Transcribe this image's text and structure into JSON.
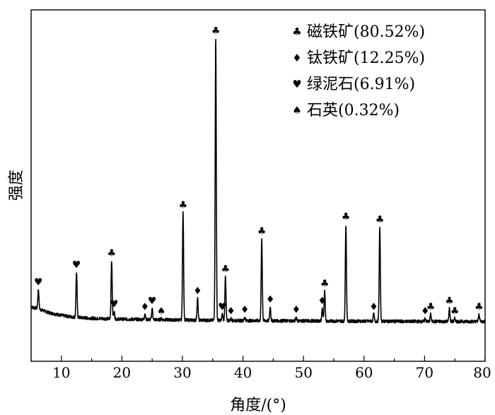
{
  "chart_data": {
    "type": "line",
    "title": "",
    "xlabel": "角度/(°)",
    "ylabel": "强度",
    "xlim": [
      5,
      80
    ],
    "ylim": [
      0,
      100
    ],
    "xticks": [
      10,
      20,
      30,
      40,
      50,
      60,
      70,
      80
    ],
    "grid": false,
    "legend_position": "top-right",
    "legend": [
      {
        "symbol": "♣",
        "label": "磁铁矿(80.52%)"
      },
      {
        "symbol": "♦",
        "label": "钛铁矿(12.25%)"
      },
      {
        "symbol": "♥",
        "label": "绿泥石(6.91%)"
      },
      {
        "symbol": "♠",
        "label": "石英(0.32%)"
      }
    ],
    "baseline": [
      [
        5,
        7.5
      ],
      [
        6,
        7.0
      ],
      [
        8,
        5.5
      ],
      [
        10,
        4.6
      ],
      [
        12,
        4.0
      ],
      [
        15,
        3.6
      ],
      [
        20,
        3.3
      ],
      [
        30,
        3.0
      ],
      [
        40,
        2.8
      ],
      [
        50,
        2.7
      ],
      [
        60,
        2.6
      ],
      [
        70,
        2.5
      ],
      [
        80,
        2.5
      ]
    ],
    "peaks": [
      {
        "x": 6.2,
        "y": 13.5,
        "phase": "♥"
      },
      {
        "x": 12.5,
        "y": 19.5,
        "phase": "♥"
      },
      {
        "x": 18.3,
        "y": 23.5,
        "phase": "♣"
      },
      {
        "x": 18.7,
        "y": 6.0,
        "phase": "♥"
      },
      {
        "x": 23.8,
        "y": 5.0,
        "phase": "♦"
      },
      {
        "x": 25.0,
        "y": 7.0,
        "phase": "♥"
      },
      {
        "x": 26.5,
        "y": 3.5,
        "phase": "♠"
      },
      {
        "x": 30.1,
        "y": 40.0,
        "phase": "♣"
      },
      {
        "x": 32.5,
        "y": 10.5,
        "phase": "♦"
      },
      {
        "x": 35.5,
        "y": 100.0,
        "phase": "♣"
      },
      {
        "x": 36.6,
        "y": 5.0,
        "phase": "♥"
      },
      {
        "x": 37.1,
        "y": 18.0,
        "phase": "♣"
      },
      {
        "x": 38.0,
        "y": 3.5,
        "phase": "♦"
      },
      {
        "x": 40.3,
        "y": 4.0,
        "phase": "♦"
      },
      {
        "x": 43.1,
        "y": 31.0,
        "phase": "♣"
      },
      {
        "x": 44.5,
        "y": 7.5,
        "phase": "♦"
      },
      {
        "x": 48.8,
        "y": 4.0,
        "phase": "♦"
      },
      {
        "x": 53.1,
        "y": 7.0,
        "phase": "♦"
      },
      {
        "x": 53.5,
        "y": 13.0,
        "phase": "♣"
      },
      {
        "x": 57.0,
        "y": 36.0,
        "phase": "♣"
      },
      {
        "x": 61.6,
        "y": 5.0,
        "phase": "♦"
      },
      {
        "x": 62.6,
        "y": 35.0,
        "phase": "♣"
      },
      {
        "x": 70.1,
        "y": 3.5,
        "phase": "♦"
      },
      {
        "x": 71.0,
        "y": 5.0,
        "phase": "♣"
      },
      {
        "x": 74.1,
        "y": 7.0,
        "phase": "♣"
      },
      {
        "x": 75.0,
        "y": 3.5,
        "phase": "♣"
      },
      {
        "x": 79.0,
        "y": 5.0,
        "phase": "♣"
      }
    ]
  }
}
